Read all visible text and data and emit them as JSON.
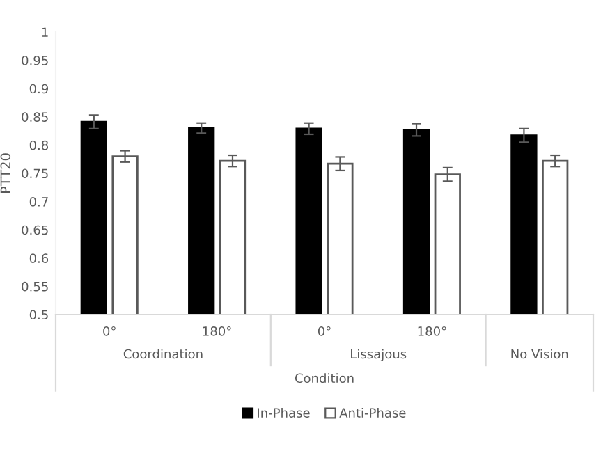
{
  "chart_data": {
    "type": "bar",
    "ylabel": "PTT20",
    "xlabel": "Condition",
    "categories": [
      "0°",
      "180°",
      "0°",
      "180°",
      null
    ],
    "annotations": [
      "Coordination",
      "Lissajous",
      "No Vision"
    ],
    "series": [
      {
        "name": "In-Phase",
        "color": "#000000",
        "values": [
          0.841,
          0.83,
          0.829,
          0.827,
          0.817
        ],
        "errors": [
          0.012,
          0.009,
          0.01,
          0.011,
          0.012
        ]
      },
      {
        "name": "Anti-Phase",
        "color": "#ffffff",
        "values": [
          0.78,
          0.772,
          0.767,
          0.748,
          0.772
        ],
        "errors": [
          0.01,
          0.01,
          0.012,
          0.012,
          0.01
        ]
      }
    ],
    "ylim": [
      0.5,
      1
    ],
    "yticks": [
      0.5,
      0.55,
      0.6,
      0.65,
      0.7,
      0.75,
      0.8,
      0.85,
      0.9,
      0.95,
      1
    ],
    "grid": false,
    "legend": "bottom"
  }
}
